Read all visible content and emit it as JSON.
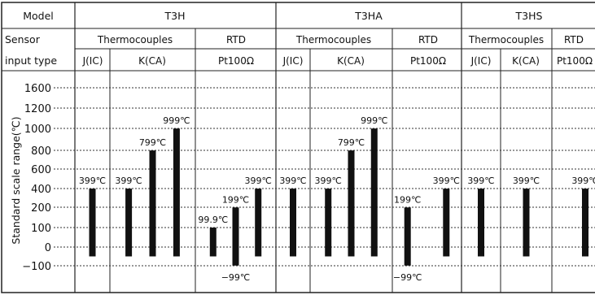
{
  "header": {
    "model_label": "Model",
    "sensor_label_1": "Sensor",
    "sensor_label_2": "input type",
    "models": [
      "T3H",
      "T3HA",
      "T3HS"
    ],
    "groups": [
      "Thermocouples",
      "RTD",
      "Thermocouples",
      "RTD",
      "Thermocouples",
      "RTD"
    ],
    "sensors": [
      "J(IC)",
      "K(CA)",
      "Pt100Ω",
      "J(IC)",
      "K(CA)",
      "Pt100Ω",
      "J(IC)",
      "K(CA)",
      "Pt100Ω"
    ]
  },
  "chart_data": {
    "type": "bar",
    "ylabel": "Standard scale range(℃)",
    "y_ticks": [
      "1600",
      "1200",
      "1000",
      "800",
      "600",
      "400",
      "200",
      "100",
      "0",
      "−100"
    ],
    "grid": true,
    "bars": [
      {
        "column": 0,
        "low": -50,
        "high": 399,
        "label": "399℃"
      },
      {
        "column": 1,
        "low": -50,
        "high": 399,
        "label": "399℃"
      },
      {
        "column": 1,
        "low": -50,
        "high": 799,
        "label": "799℃"
      },
      {
        "column": 1,
        "low": -50,
        "high": 999,
        "label": "999℃"
      },
      {
        "column": 2,
        "low": -50,
        "high": 99.9,
        "label": "99.9℃"
      },
      {
        "column": 2,
        "low": -99,
        "high": 199,
        "label": "199℃",
        "low_label": "−99℃"
      },
      {
        "column": 2,
        "low": -50,
        "high": 399,
        "label": "399℃"
      },
      {
        "column": 3,
        "low": -50,
        "high": 399,
        "label": "399℃"
      },
      {
        "column": 4,
        "low": -50,
        "high": 399,
        "label": "399℃"
      },
      {
        "column": 4,
        "low": -50,
        "high": 799,
        "label": "799℃"
      },
      {
        "column": 4,
        "low": -50,
        "high": 999,
        "label": "999℃"
      },
      {
        "column": 5,
        "low": -99,
        "high": 199,
        "label": "199℃",
        "low_label": "−99℃"
      },
      {
        "column": 5,
        "low": -50,
        "high": 399,
        "label": "399℃"
      },
      {
        "column": 6,
        "low": -50,
        "high": 399,
        "label": "399℃"
      },
      {
        "column": 7,
        "low": -50,
        "high": 399,
        "label": "399℃"
      },
      {
        "column": 8,
        "low": -50,
        "high": 399,
        "label": "399℃"
      }
    ]
  }
}
